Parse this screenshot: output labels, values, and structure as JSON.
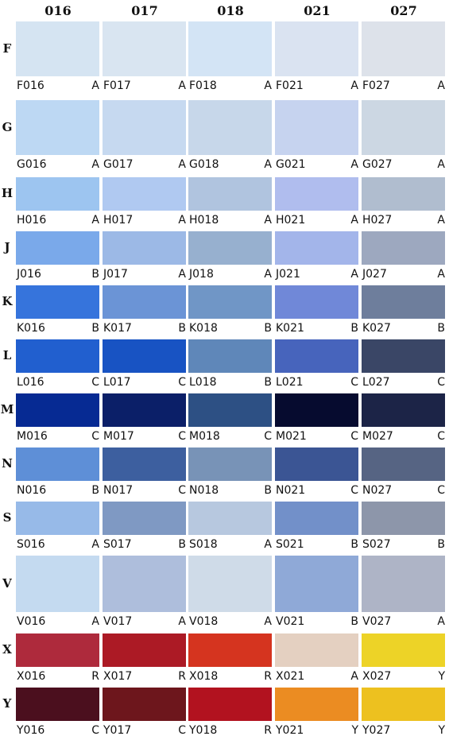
{
  "columns": [
    "016",
    "017",
    "018",
    "021",
    "027"
  ],
  "rows": [
    {
      "letter": "F",
      "cells": [
        {
          "code": "F016",
          "grade": "A",
          "color": "#d5e4f2"
        },
        {
          "code": "F017",
          "grade": "A",
          "color": "#d9e5f1"
        },
        {
          "code": "F018",
          "grade": "A",
          "color": "#d3e4f5"
        },
        {
          "code": "F021",
          "grade": "A",
          "color": "#dae3f1"
        },
        {
          "code": "F027",
          "grade": "A",
          "color": "#dde2ea"
        }
      ]
    },
    {
      "letter": "G",
      "cells": [
        {
          "code": "G016",
          "grade": "A",
          "color": "#bdd8f3"
        },
        {
          "code": "G017",
          "grade": "A",
          "color": "#c6d9f0"
        },
        {
          "code": "G018",
          "grade": "A",
          "color": "#c7d7ea"
        },
        {
          "code": "G021",
          "grade": "A",
          "color": "#c6d3ef"
        },
        {
          "code": "G027",
          "grade": "A",
          "color": "#ccd7e3"
        }
      ]
    },
    {
      "letter": "H",
      "cells": [
        {
          "code": "H016",
          "grade": "A",
          "color": "#9dc5f0"
        },
        {
          "code": "H017",
          "grade": "A",
          "color": "#b0c9f1"
        },
        {
          "code": "H018",
          "grade": "A",
          "color": "#b0c4df"
        },
        {
          "code": "H021",
          "grade": "A",
          "color": "#b0bdee"
        },
        {
          "code": "H027",
          "grade": "A",
          "color": "#b0bdcf"
        }
      ]
    },
    {
      "letter": "J",
      "cells": [
        {
          "code": "J016",
          "grade": "B",
          "color": "#7aa9ea"
        },
        {
          "code": "J017",
          "grade": "A",
          "color": "#9cb9e6"
        },
        {
          "code": "J018",
          "grade": "A",
          "color": "#97b0cf"
        },
        {
          "code": "J021",
          "grade": "A",
          "color": "#a3b5ea"
        },
        {
          "code": "J027",
          "grade": "A",
          "color": "#9da8bf"
        }
      ]
    },
    {
      "letter": "K",
      "cells": [
        {
          "code": "K016",
          "grade": "B",
          "color": "#3674dc"
        },
        {
          "code": "K017",
          "grade": "B",
          "color": "#6b94d6"
        },
        {
          "code": "K018",
          "grade": "B",
          "color": "#7096c6"
        },
        {
          "code": "K021",
          "grade": "B",
          "color": "#7088d8"
        },
        {
          "code": "K027",
          "grade": "B",
          "color": "#6e7e9c"
        }
      ]
    },
    {
      "letter": "L",
      "cells": [
        {
          "code": "L016",
          "grade": "C",
          "color": "#215fcf"
        },
        {
          "code": "L017",
          "grade": "C",
          "color": "#1853c3"
        },
        {
          "code": "L018",
          "grade": "B",
          "color": "#5f87b9"
        },
        {
          "code": "L021",
          "grade": "C",
          "color": "#4764bc"
        },
        {
          "code": "L027",
          "grade": "C",
          "color": "#3a4666"
        }
      ]
    },
    {
      "letter": "M",
      "cells": [
        {
          "code": "M016",
          "grade": "C",
          "color": "#062a93"
        },
        {
          "code": "M017",
          "grade": "C",
          "color": "#0b1f68"
        },
        {
          "code": "M018",
          "grade": "C",
          "color": "#2d5084"
        },
        {
          "code": "M021",
          "grade": "C",
          "color": "#060b2f"
        },
        {
          "code": "M027",
          "grade": "C",
          "color": "#1c2447"
        }
      ]
    },
    {
      "letter": "N",
      "cells": [
        {
          "code": "N016",
          "grade": "B",
          "color": "#5e8fd7"
        },
        {
          "code": "N017",
          "grade": "C",
          "color": "#3d5f9f"
        },
        {
          "code": "N018",
          "grade": "B",
          "color": "#7893b7"
        },
        {
          "code": "N021",
          "grade": "C",
          "color": "#3b5594"
        },
        {
          "code": "N027",
          "grade": "C",
          "color": "#566483"
        }
      ]
    },
    {
      "letter": "S",
      "cells": [
        {
          "code": "S016",
          "grade": "A",
          "color": "#97bae8"
        },
        {
          "code": "S017",
          "grade": "B",
          "color": "#7f99c3"
        },
        {
          "code": "S018",
          "grade": "A",
          "color": "#b7c8df"
        },
        {
          "code": "S021",
          "grade": "B",
          "color": "#7290c9"
        },
        {
          "code": "S027",
          "grade": "B",
          "color": "#8d96aa"
        }
      ]
    },
    {
      "letter": "V",
      "cells": [
        {
          "code": "V016",
          "grade": "A",
          "color": "#c4daf0"
        },
        {
          "code": "V017",
          "grade": "A",
          "color": "#aebedc"
        },
        {
          "code": "V018",
          "grade": "A",
          "color": "#cfdbe8"
        },
        {
          "code": "V021",
          "grade": "B",
          "color": "#8fa9d7"
        },
        {
          "code": "V027",
          "grade": "A",
          "color": "#aeb4c6"
        }
      ]
    },
    {
      "letter": "X",
      "cells": [
        {
          "code": "X016",
          "grade": "R",
          "color": "#ae2a3c"
        },
        {
          "code": "X017",
          "grade": "R",
          "color": "#ac1a25"
        },
        {
          "code": "X018",
          "grade": "R",
          "color": "#d5341f"
        },
        {
          "code": "X021",
          "grade": "A",
          "color": "#e4d0c1"
        },
        {
          "code": "X027",
          "grade": "Y",
          "color": "#edd327"
        }
      ]
    },
    {
      "letter": "Y",
      "cells": [
        {
          "code": "Y016",
          "grade": "C",
          "color": "#4b0f1e"
        },
        {
          "code": "Y017",
          "grade": "C",
          "color": "#6d161c"
        },
        {
          "code": "Y018",
          "grade": "R",
          "color": "#b2121f"
        },
        {
          "code": "Y021",
          "grade": "Y",
          "color": "#eb8c22"
        },
        {
          "code": "Y027",
          "grade": "Y",
          "color": "#edc11f"
        }
      ]
    }
  ]
}
